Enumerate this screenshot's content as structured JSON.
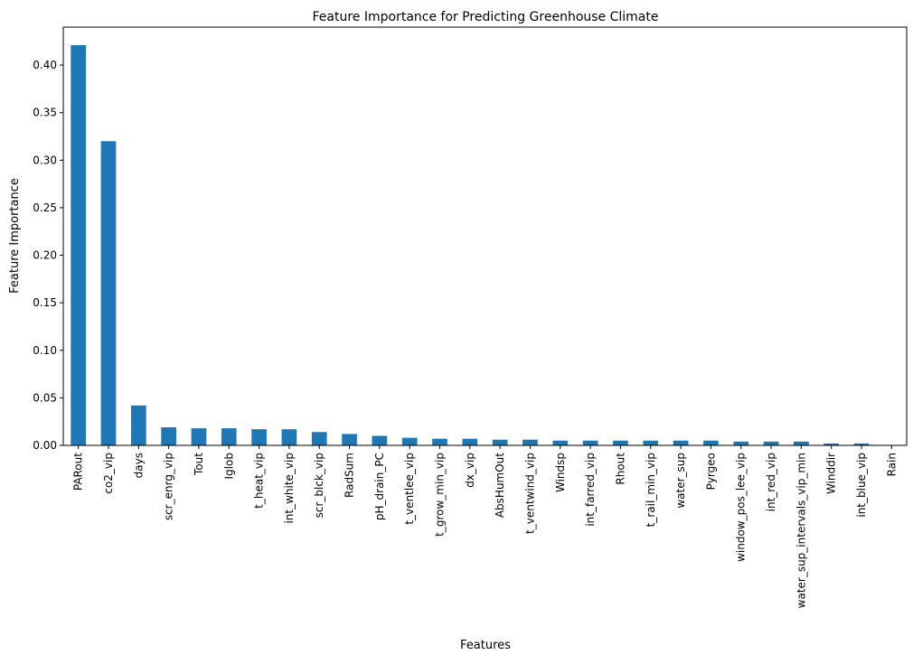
{
  "chart_data": {
    "type": "bar",
    "title": "Feature Importance for Predicting Greenhouse Climate",
    "xlabel": "Features",
    "ylabel": "Feature Importance",
    "ylim": [
      0,
      0.44
    ],
    "yticks": [
      "0.00",
      "0.05",
      "0.10",
      "0.15",
      "0.20",
      "0.25",
      "0.30",
      "0.35",
      "0.40"
    ],
    "grid": false,
    "legend": "none",
    "bar_color": "#1f77b4",
    "categories": [
      "PARout",
      "co2_vip",
      "days",
      "scr_enrg_vip",
      "Tout",
      "Iglob",
      "t_heat_vip",
      "int_white_vip",
      "scr_blck_vip",
      "RadSum",
      "pH_drain_PC",
      "t_ventlee_vip",
      "t_grow_min_vip",
      "dx_vip",
      "AbsHumOut",
      "t_ventwind_vip",
      "Windsp",
      "int_farred_vip",
      "Rhout",
      "t_rail_min_vip",
      "water_sup",
      "Pyrgeo",
      "window_pos_lee_vip",
      "int_red_vip",
      "water_sup_intervals_vip_min",
      "Winddir",
      "int_blue_vip",
      "Rain"
    ],
    "values": [
      0.421,
      0.32,
      0.042,
      0.019,
      0.018,
      0.018,
      0.017,
      0.017,
      0.014,
      0.012,
      0.01,
      0.008,
      0.007,
      0.007,
      0.006,
      0.006,
      0.005,
      0.005,
      0.005,
      0.005,
      0.005,
      0.005,
      0.004,
      0.004,
      0.004,
      0.002,
      0.002,
      0.0
    ]
  }
}
